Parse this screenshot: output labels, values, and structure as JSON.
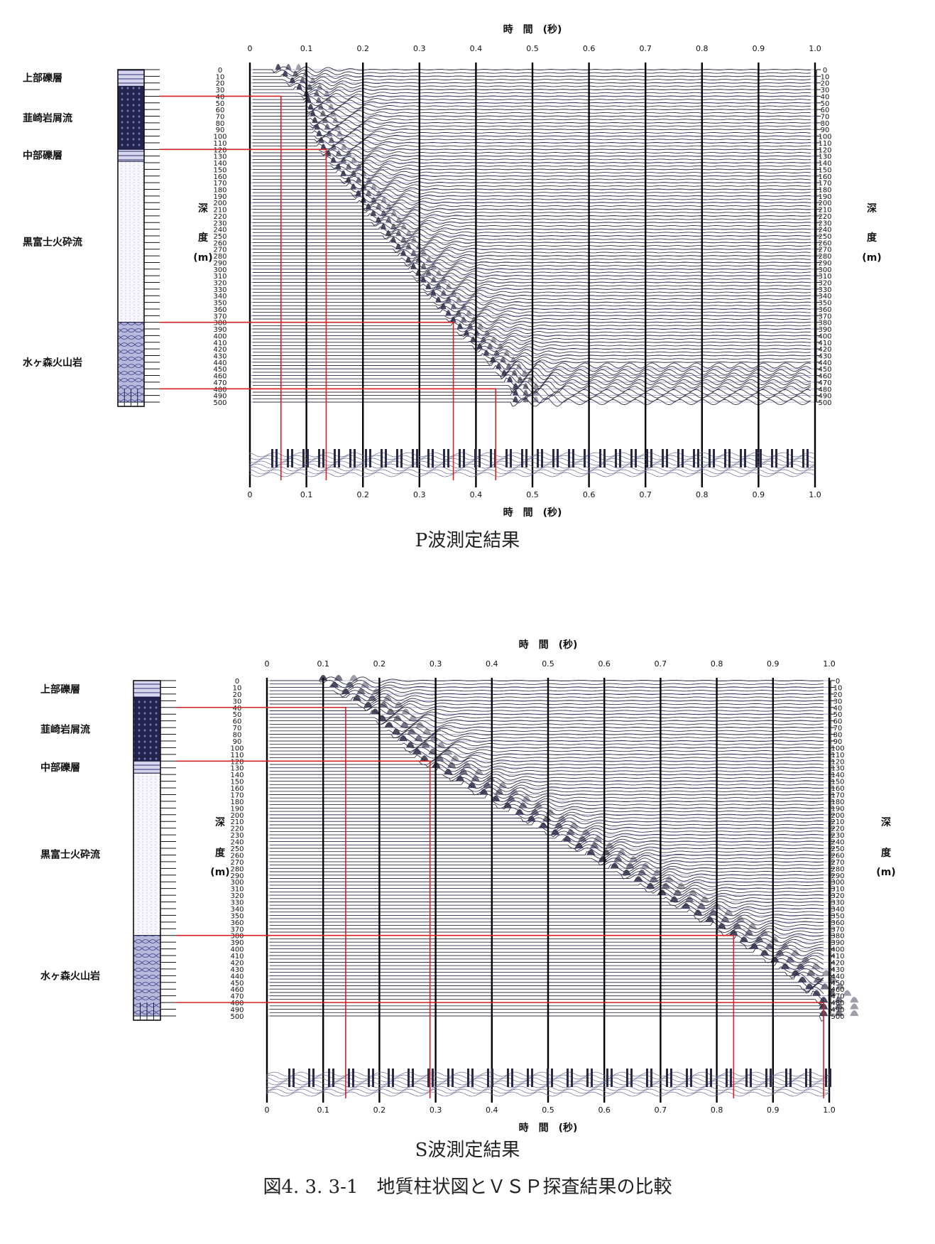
{
  "figure_caption": "図4. 3. 3-1　地質柱状図とＶＳＰ探査結果の比較",
  "chart_data": [
    {
      "type": "line",
      "title": "P波測定結果",
      "xlabel": "時　間　(秒)",
      "ylabel_chars": [
        "深",
        "度",
        "(m)"
      ],
      "xlim": [
        0,
        1.0
      ],
      "ylim": [
        0,
        500
      ],
      "x_ticks": [
        "0",
        "0.1",
        "0.2",
        "0.3",
        "0.4",
        "0.5",
        "0.6",
        "0.7",
        "0.8",
        "0.9",
        "1.0"
      ],
      "depth_labels": [
        "0",
        "10",
        "20",
        "30",
        "40",
        "50",
        "60",
        "70",
        "80",
        "90",
        "100",
        "110",
        "120",
        "130",
        "140",
        "150",
        "160",
        "170",
        "180",
        "190",
        "200",
        "210",
        "220",
        "230",
        "240",
        "250",
        "260",
        "270",
        "280",
        "290",
        "300",
        "310",
        "320",
        "330",
        "340",
        "350",
        "360",
        "370",
        "380",
        "390",
        "400",
        "410",
        "420",
        "430",
        "440",
        "450",
        "460",
        "470",
        "480",
        "490",
        "500"
      ],
      "first_arrival": {
        "depth": [
          0,
          40,
          120,
          380,
          440,
          480
        ],
        "time": [
          0.05,
          0.1,
          0.13,
          0.36,
          0.43,
          0.47
        ]
      },
      "boundaries": [
        {
          "depth": 40,
          "time": 0.055
        },
        {
          "depth": 120,
          "time": 0.135
        },
        {
          "depth": 380,
          "time": 0.36
        },
        {
          "depth": 480,
          "time": 0.435
        }
      ],
      "strata": [
        {
          "name": "上部礫層",
          "top": 0,
          "bottom": 25
        },
        {
          "name": "韮崎岩屑流",
          "top": 25,
          "bottom": 120
        },
        {
          "name": "中部礫層",
          "top": 120,
          "bottom": 138
        },
        {
          "name": "黒富士火砕流",
          "top": 138,
          "bottom": 380
        },
        {
          "name": "水ヶ森火山岩",
          "top": 380,
          "bottom": 500
        }
      ]
    },
    {
      "type": "line",
      "title": "S波測定結果",
      "xlabel": "時　間　(秒)",
      "ylabel_chars": [
        "深",
        "度",
        "(m)"
      ],
      "xlim": [
        0,
        1.0
      ],
      "ylim": [
        0,
        500
      ],
      "x_ticks": [
        "0",
        "0.1",
        "0.2",
        "0.3",
        "0.4",
        "0.5",
        "0.6",
        "0.7",
        "0.8",
        "0.9",
        "1.0"
      ],
      "depth_labels": [
        "0",
        "10",
        "20",
        "30",
        "40",
        "50",
        "60",
        "70",
        "80",
        "90",
        "100",
        "110",
        "120",
        "130",
        "140",
        "150",
        "160",
        "170",
        "180",
        "190",
        "200",
        "210",
        "220",
        "230",
        "240",
        "250",
        "260",
        "270",
        "280",
        "290",
        "300",
        "310",
        "320",
        "330",
        "340",
        "350",
        "360",
        "370",
        "380",
        "390",
        "400",
        "410",
        "420",
        "430",
        "440",
        "450",
        "460",
        "470",
        "480",
        "490",
        "500"
      ],
      "first_arrival": {
        "depth": [
          0,
          40,
          120,
          380,
          440,
          480
        ],
        "time": [
          0.1,
          0.18,
          0.28,
          0.83,
          0.94,
          0.99
        ]
      },
      "boundaries": [
        {
          "depth": 40,
          "time": 0.14
        },
        {
          "depth": 120,
          "time": 0.29
        },
        {
          "depth": 380,
          "time": 0.83
        },
        {
          "depth": 480,
          "time": 0.99
        }
      ],
      "strata": [
        {
          "name": "上部礫層",
          "top": 0,
          "bottom": 25
        },
        {
          "name": "韮崎岩屑流",
          "top": 25,
          "bottom": 120
        },
        {
          "name": "中部礫層",
          "top": 120,
          "bottom": 138
        },
        {
          "name": "黒富士火砕流",
          "top": 138,
          "bottom": 380
        },
        {
          "name": "水ヶ森火山岩",
          "top": 380,
          "bottom": 500
        }
      ]
    }
  ],
  "colors": {
    "red": "#d42020",
    "trace": "#33334a",
    "column_dark": "#1c1c4a",
    "column_mid": "#7f80b4",
    "column_light": "#c4c6e6"
  }
}
